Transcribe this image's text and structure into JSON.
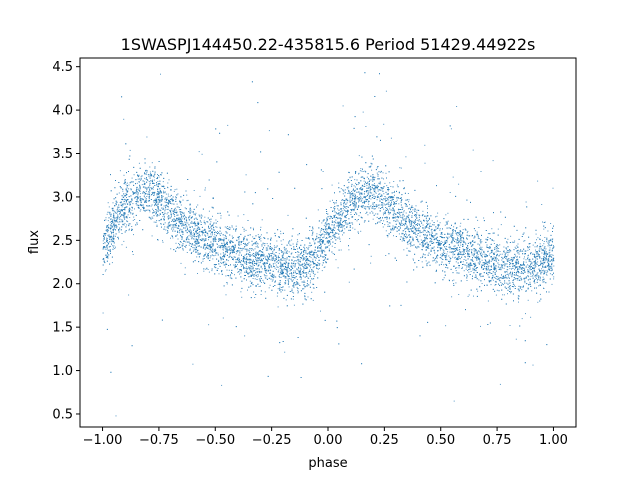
{
  "chart_data": {
    "type": "scatter",
    "title": "1SWASPJ144450.22-435815.6 Period 51429.44922s",
    "xlabel": "phase",
    "ylabel": "flux",
    "xlim": [
      -1.1,
      1.1
    ],
    "ylim": [
      0.35,
      4.6
    ],
    "xticks": [
      -1.0,
      -0.75,
      -0.5,
      -0.25,
      0.0,
      0.25,
      0.5,
      0.75,
      1.0
    ],
    "xtick_labels": [
      "−1.00",
      "−0.75",
      "−0.50",
      "−0.25",
      "0.00",
      "0.25",
      "0.50",
      "0.75",
      "1.00"
    ],
    "yticks": [
      0.5,
      1.0,
      1.5,
      2.0,
      2.5,
      3.0,
      3.5,
      4.0,
      4.5
    ],
    "ytick_labels": [
      "0.5",
      "1.0",
      "1.5",
      "2.0",
      "2.5",
      "3.0",
      "3.5",
      "4.0",
      "4.5"
    ],
    "grid": false,
    "marker_color": "#1f77b4",
    "series": [
      {
        "x": [
          -1.0,
          -0.95,
          -0.9,
          -0.85,
          -0.8,
          -0.75,
          -0.7,
          -0.65,
          -0.6,
          -0.55,
          -0.5,
          -0.45,
          -0.4,
          -0.35,
          -0.3,
          -0.25,
          -0.2,
          -0.15,
          -0.1,
          -0.05,
          0.0,
          0.05,
          0.1,
          0.15,
          0.2,
          0.25,
          0.3,
          0.35,
          0.4,
          0.45,
          0.5,
          0.55,
          0.6,
          0.65,
          0.7,
          0.75,
          0.8,
          0.85,
          0.9,
          0.95,
          1.0
        ],
        "y": [
          2.35,
          2.72,
          2.93,
          3.03,
          3.07,
          2.98,
          2.82,
          2.7,
          2.6,
          2.52,
          2.45,
          2.4,
          2.35,
          2.3,
          2.26,
          2.23,
          2.2,
          2.18,
          2.22,
          2.35,
          2.55,
          2.75,
          2.93,
          3.03,
          3.06,
          2.97,
          2.82,
          2.7,
          2.6,
          2.52,
          2.45,
          2.4,
          2.35,
          2.3,
          2.26,
          2.23,
          2.2,
          2.18,
          2.22,
          2.28,
          2.35
        ]
      }
    ]
  }
}
